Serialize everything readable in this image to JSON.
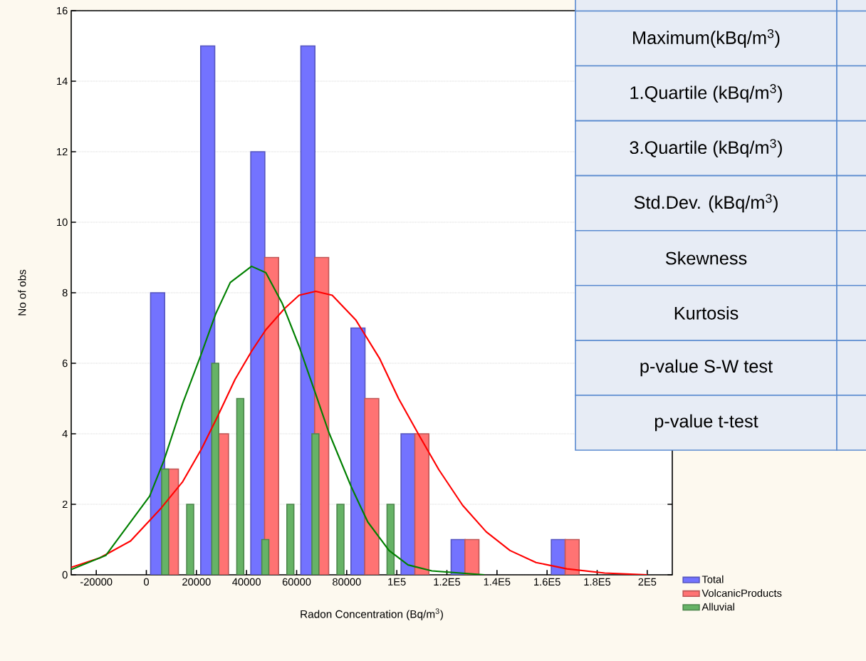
{
  "chart_data": {
    "type": "bar",
    "xlabel": "Radon Concentration (Bq/m$^{3}$)",
    "ylabel": "No of obs",
    "xlim": [
      -30000,
      210000
    ],
    "ylim": [
      0,
      16
    ],
    "xticks": [
      -20000,
      0,
      20000,
      40000,
      60000,
      80000,
      {
        "value": 100000,
        "label": "1E5"
      },
      {
        "value": 120000,
        "label": "1.2E5"
      },
      {
        "value": 140000,
        "label": "1.4E5"
      },
      {
        "value": 160000,
        "label": "1.6E5"
      },
      {
        "value": 180000,
        "label": "1.8E5"
      },
      {
        "value": 200000,
        "label": "2E5"
      }
    ],
    "yticks": [
      0,
      2,
      4,
      6,
      8,
      10,
      12,
      14,
      16
    ],
    "grid": "y",
    "legend": "bottom right",
    "series": [
      {
        "name": "Total",
        "color": "#7373ff",
        "x": [
          4500,
          24500,
          44500,
          64500,
          84500,
          104500,
          124500,
          164500
        ],
        "values": [
          8,
          15,
          12,
          15,
          7,
          4,
          1,
          1
        ]
      },
      {
        "name": "VolcanicProducts",
        "color": "#ff7373",
        "x": [
          10000,
          30000,
          50000,
          70000,
          90000,
          110000,
          130000,
          170000
        ],
        "values": [
          3,
          4,
          9,
          9,
          5,
          4,
          1,
          1
        ]
      },
      {
        "name": "Alluvial",
        "color": "#66b366",
        "x": [
          7500,
          17500,
          27500,
          37500,
          47500,
          57500,
          67500,
          77500,
          97500
        ],
        "values": [
          3,
          2,
          6,
          5,
          1,
          2,
          4,
          2,
          2
        ]
      },
      {
        "type": "line",
        "color": "#ff0000",
        "x": [
          -30000,
          -18600,
          -6300,
          6000,
          14500,
          22100,
          28700,
          35400,
          42000,
          47700,
          55300,
          61000,
          67600,
          74200,
          83700,
          93100,
          100700,
          109200,
          116800,
          126300,
          135700,
          145200,
          155600,
          167900,
          183000,
          200000
        ],
        "values": [
          0.21,
          0.48,
          0.96,
          1.9,
          2.64,
          3.58,
          4.53,
          5.54,
          6.34,
          6.95,
          7.56,
          7.93,
          8.04,
          7.93,
          7.22,
          6.14,
          5.0,
          3.92,
          2.98,
          1.97,
          1.22,
          0.69,
          0.35,
          0.17,
          0.05,
          0.0
        ]
      },
      {
        "type": "line",
        "color": "#008000",
        "x": [
          -30000,
          -16200,
          1300,
          7000,
          14500,
          21600,
          27800,
          33500,
          42000,
          47700,
          54300,
          61000,
          67600,
          72800,
          81800,
          88400,
          96900,
          104500,
          114000,
          135000
        ],
        "values": [
          0.15,
          0.55,
          2.23,
          3.24,
          4.86,
          6.2,
          7.42,
          8.29,
          8.75,
          8.57,
          7.69,
          6.48,
          5.13,
          4.05,
          2.5,
          1.5,
          0.69,
          0.28,
          0.11,
          0.0
        ]
      }
    ],
    "annotations": [
      "Maximum(kBq/m$^{3}$)",
      "1.Quartile (kBq/m$^{3}$)",
      "3.Quartile (kBq/m$^{3}$)",
      "Std.Dev. (kBq/m$^{3}$)",
      "Skewness",
      "Kurtosis",
      "p-value S-W test",
      "p-value t-test"
    ]
  }
}
